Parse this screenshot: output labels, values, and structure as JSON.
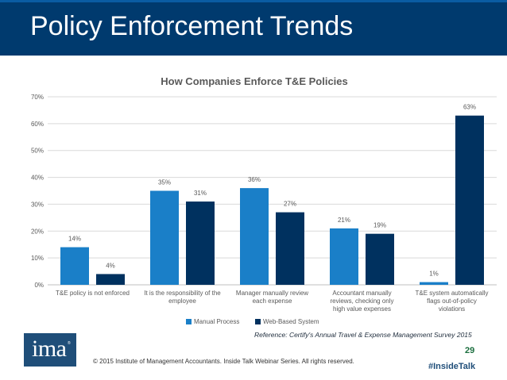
{
  "slide": {
    "title": "Policy Enforcement Trends",
    "reference": "Reference: Certify's Annual Travel & Expense Management Survey 2015",
    "page_number": "29",
    "logo_text": "ima",
    "logo_mark": "®",
    "copyright": "© 2015 Institute of Management Accountants. Inside Talk Webinar Series. All rights reserved.",
    "hashtag": "#InsideTalk"
  },
  "colors": {
    "title_bar": "#003a6e",
    "manual": "#1a7fc8",
    "web": "#00315f",
    "grid": "#d9d9d9",
    "text": "#595959"
  },
  "chart_data": {
    "type": "bar",
    "title": "How Companies Enforce T&E Policies",
    "categories": [
      [
        "T&E policy is not enforced"
      ],
      [
        "It is the responsibility of the",
        "employee"
      ],
      [
        "Manager manually review",
        "each expense"
      ],
      [
        "Accountant manually",
        "reviews, checking only",
        "high value expenses"
      ],
      [
        "T&E system automatically",
        "flags out-of-policy",
        "violations"
      ]
    ],
    "series": [
      {
        "name": "Manual Process",
        "values": [
          14,
          35,
          36,
          21,
          1
        ]
      },
      {
        "name": "Web-Based System",
        "values": [
          4,
          31,
          27,
          19,
          63
        ]
      }
    ],
    "value_labels": [
      [
        "14%",
        "35%",
        "36%",
        "21%",
        "1%"
      ],
      [
        "4%",
        "31%",
        "27%",
        "19%",
        "63%"
      ]
    ],
    "yticks": [
      "0%",
      "10%",
      "20%",
      "30%",
      "40%",
      "50%",
      "60%",
      "70%"
    ],
    "ylim": [
      0,
      70
    ],
    "xlabel": "",
    "ylabel": "",
    "grid": true,
    "legend": "bottom"
  }
}
